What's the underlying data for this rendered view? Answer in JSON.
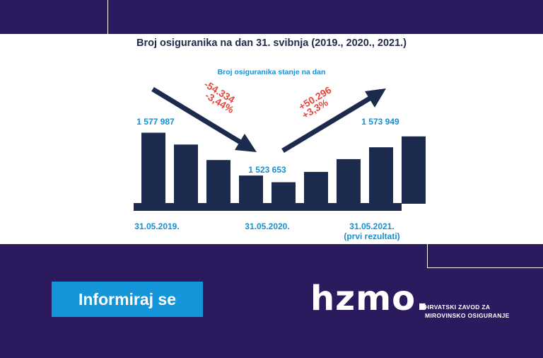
{
  "header": {
    "title": "Broj osiguranika na dan 31. svibnja (2019., 2020., 2021.)",
    "subtitle": "Broj osiguranika stanje na dan"
  },
  "chart_data": {
    "type": "bar",
    "categories": [
      "31.05.2019.",
      "",
      "",
      "",
      "31.05.2020.",
      "",
      "",
      "",
      "31.05.2021. (prvi rezultati)"
    ],
    "values": [
      1577987,
      1565000,
      1548000,
      1531000,
      1523653,
      1535000,
      1549000,
      1562000,
      1573949
    ],
    "value_labels": [
      {
        "index": 0,
        "text": "1 577 987"
      },
      {
        "index": 4,
        "text": "1 523 653"
      },
      {
        "index": 8,
        "text": "1 573 949"
      }
    ],
    "tick_labels": [
      {
        "index": 0,
        "lines": [
          "31.05.2019."
        ]
      },
      {
        "index": 4,
        "lines": [
          "31.05.2020."
        ]
      },
      {
        "index": 8,
        "lines": [
          "31.05.2021.",
          "(prvi rezultati)"
        ]
      }
    ],
    "annotations": {
      "decrease": {
        "lines": [
          "-54.334",
          "-3,44%"
        ]
      },
      "increase": {
        "lines": [
          "+50.296",
          "+3,3%"
        ]
      }
    },
    "grid": false,
    "legend": "none",
    "colors": {
      "bar": "#1c2a4d",
      "label": "#1a8fd0",
      "annotation": "#e8473f",
      "arrow": "#1c2a4d"
    }
  },
  "cta": {
    "label": "Informiraj se"
  },
  "logo": {
    "text": "hzmo.",
    "subtitle_line1": "HRVATSKI ZAVOD ZA",
    "subtitle_line2": "MIROVINSKO OSIGURANJE"
  }
}
